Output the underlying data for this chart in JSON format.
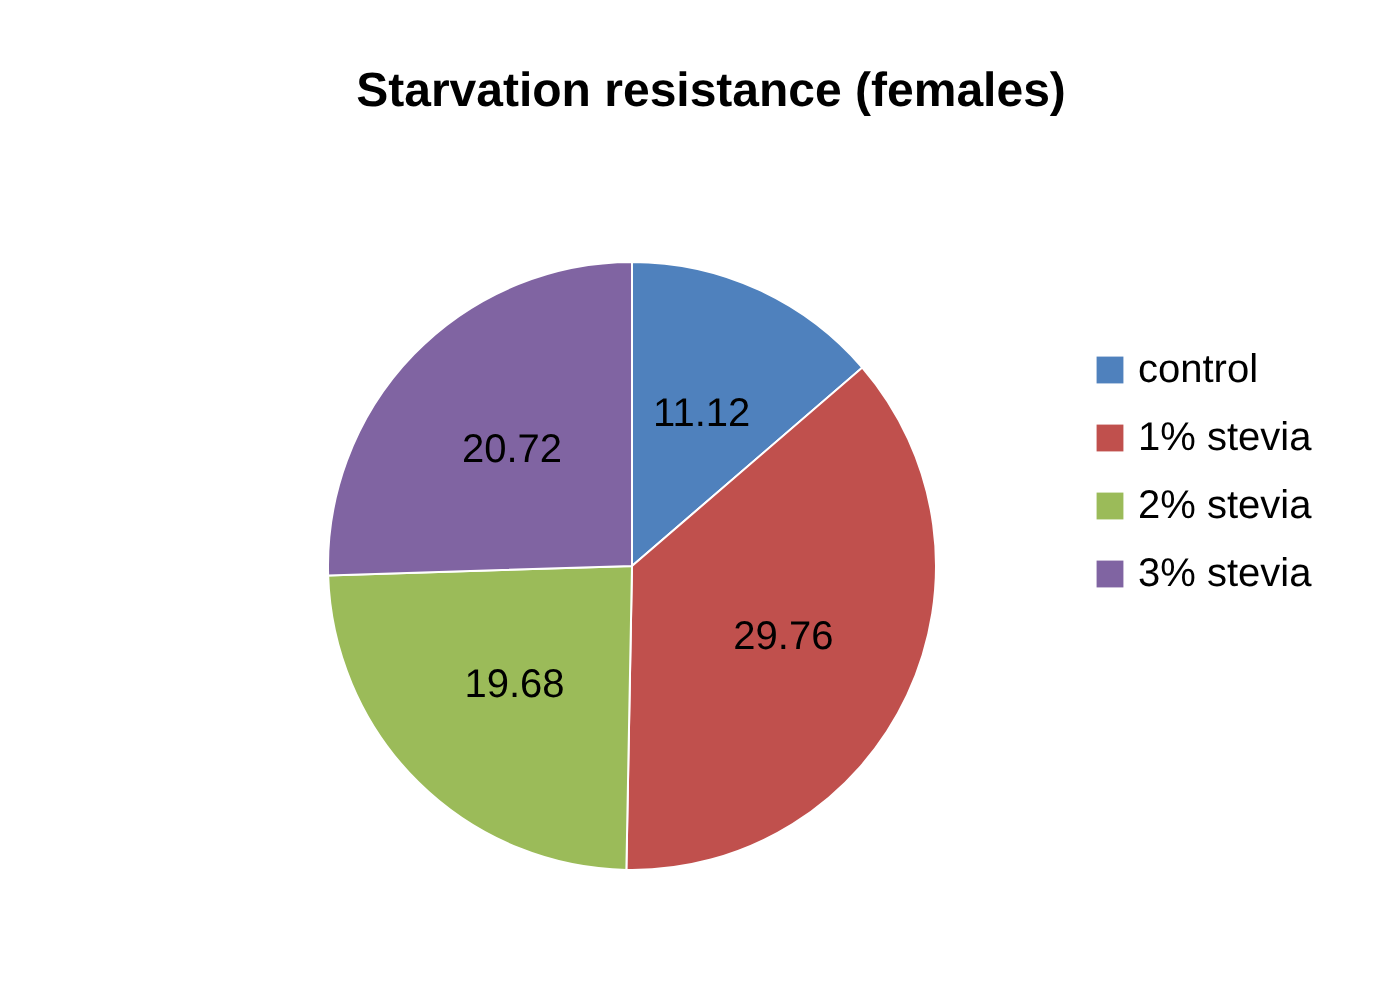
{
  "chart_data": {
    "type": "pie",
    "title": "Starvation resistance (females)",
    "categories": [
      "control",
      "1% stevia",
      "2% stevia",
      "3% stevia"
    ],
    "values": [
      11.12,
      29.76,
      19.68,
      20.72
    ],
    "colors": [
      "#4f81bd",
      "#c0504d",
      "#9bbb59",
      "#8064a2"
    ],
    "data_labels": true,
    "legend": "right"
  }
}
